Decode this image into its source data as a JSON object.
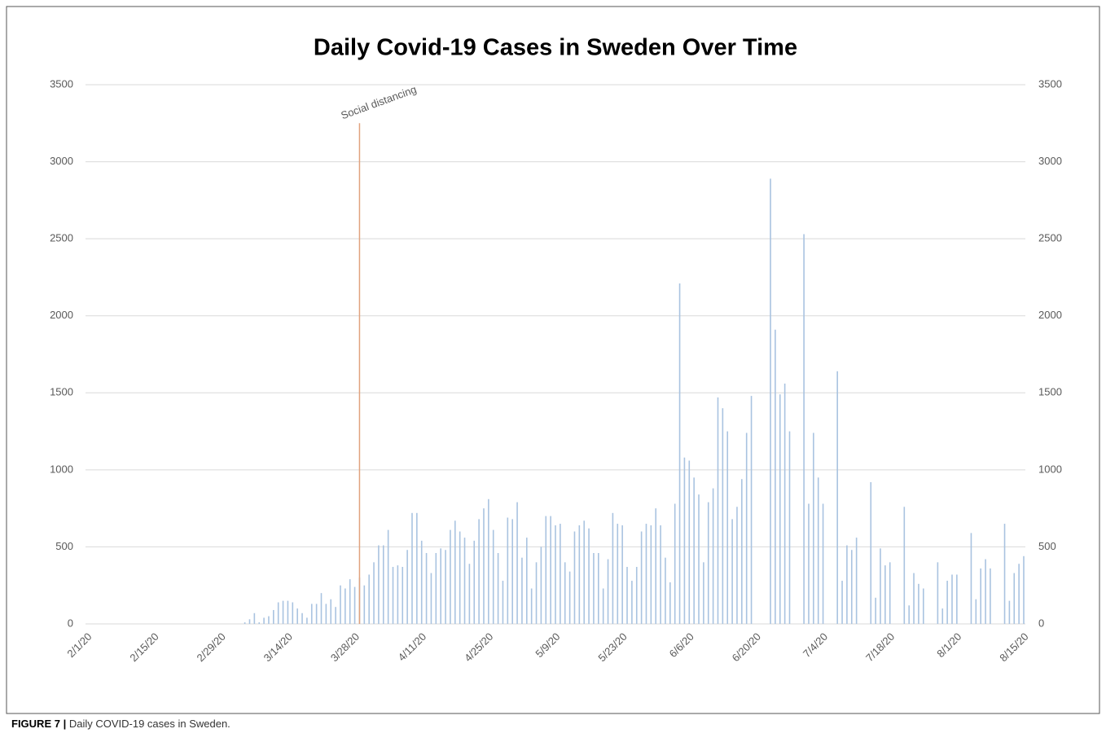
{
  "chart_data": {
    "type": "bar",
    "title": "Daily Covid-19 Cases in Sweden Over Time",
    "categories": [
      "2/1/20",
      null,
      null,
      null,
      null,
      null,
      null,
      null,
      null,
      null,
      null,
      null,
      null,
      null,
      "2/15/20",
      null,
      null,
      null,
      null,
      null,
      null,
      null,
      null,
      null,
      null,
      null,
      null,
      null,
      "2/29/20",
      null,
      null,
      null,
      null,
      null,
      null,
      null,
      null,
      null,
      null,
      null,
      null,
      null,
      "3/14/20",
      null,
      null,
      null,
      null,
      null,
      null,
      null,
      null,
      null,
      null,
      null,
      null,
      null,
      "3/28/20",
      null,
      null,
      null,
      null,
      null,
      null,
      null,
      null,
      null,
      null,
      null,
      null,
      null,
      "4/11/20",
      null,
      null,
      null,
      null,
      null,
      null,
      null,
      null,
      null,
      null,
      null,
      null,
      null,
      "4/25/20",
      null,
      null,
      null,
      null,
      null,
      null,
      null,
      null,
      null,
      null,
      null,
      null,
      null,
      "5/9/20",
      null,
      null,
      null,
      null,
      null,
      null,
      null,
      null,
      null,
      null,
      null,
      null,
      null,
      "5/23/20",
      null,
      null,
      null,
      null,
      null,
      null,
      null,
      null,
      null,
      null,
      null,
      null,
      null,
      "6/6/20",
      null,
      null,
      null,
      null,
      null,
      null,
      null,
      null,
      null,
      null,
      null,
      null,
      null,
      "6/20/20",
      null,
      null,
      null,
      null,
      null,
      null,
      null,
      null,
      null,
      null,
      null,
      null,
      null,
      "7/4/20",
      null,
      null,
      null,
      null,
      null,
      null,
      null,
      null,
      null,
      null,
      null,
      null,
      null,
      "7/18/20",
      null,
      null,
      null,
      null,
      null,
      null,
      null,
      null,
      null,
      null,
      null,
      null,
      null,
      "8/1/20",
      null,
      null,
      null,
      null,
      null,
      null,
      null,
      null,
      null,
      null,
      null,
      null,
      null,
      "8/15/20"
    ],
    "values": [
      0,
      0,
      0,
      0,
      0,
      0,
      0,
      0,
      0,
      0,
      0,
      0,
      0,
      0,
      0,
      0,
      0,
      0,
      0,
      0,
      0,
      0,
      0,
      0,
      0,
      0,
      0,
      0,
      0,
      0,
      0,
      0,
      0,
      10,
      30,
      70,
      10,
      40,
      50,
      90,
      140,
      150,
      150,
      140,
      100,
      70,
      40,
      130,
      130,
      200,
      130,
      160,
      110,
      250,
      230,
      290,
      240,
      300,
      250,
      320,
      400,
      510,
      510,
      610,
      370,
      380,
      370,
      480,
      720,
      720,
      540,
      460,
      330,
      460,
      490,
      480,
      610,
      670,
      600,
      560,
      390,
      540,
      680,
      750,
      810,
      610,
      460,
      280,
      690,
      680,
      790,
      430,
      560,
      230,
      400,
      500,
      700,
      700,
      640,
      650,
      400,
      340,
      600,
      640,
      670,
      620,
      460,
      460,
      230,
      420,
      720,
      650,
      640,
      370,
      280,
      370,
      600,
      650,
      640,
      750,
      640,
      430,
      270,
      780,
      2210,
      1080,
      1060,
      950,
      840,
      400,
      790,
      880,
      1470,
      1400,
      1250,
      680,
      760,
      940,
      1240,
      1480,
      0,
      0,
      0,
      2890,
      1910,
      1490,
      1560,
      1250,
      0,
      0,
      2530,
      780,
      1240,
      950,
      780,
      0,
      0,
      1640,
      280,
      510,
      480,
      560,
      0,
      0,
      920,
      170,
      490,
      380,
      400,
      0,
      0,
      760,
      120,
      330,
      260,
      230,
      0,
      0,
      400,
      100,
      280,
      320,
      320,
      0,
      0,
      590,
      160,
      360,
      420,
      360,
      0,
      0,
      650,
      150,
      330,
      390,
      440
    ],
    "color": "#a9c3e0",
    "ylim": [
      0,
      3500
    ],
    "yticks": [
      0,
      500,
      1000,
      1500,
      2000,
      2500,
      3000,
      3500
    ],
    "y2lim": [
      0,
      3500
    ],
    "y2ticks": [
      0,
      500,
      1000,
      1500,
      2000,
      2500,
      3000,
      3500
    ],
    "grid": true,
    "annotation": {
      "text": "Social distancing",
      "index": 57,
      "value": 3250,
      "color": "#e0a27e"
    }
  },
  "caption": {
    "label": "FIGURE 7 |",
    "text": "Daily COVID-19 cases in Sweden."
  }
}
